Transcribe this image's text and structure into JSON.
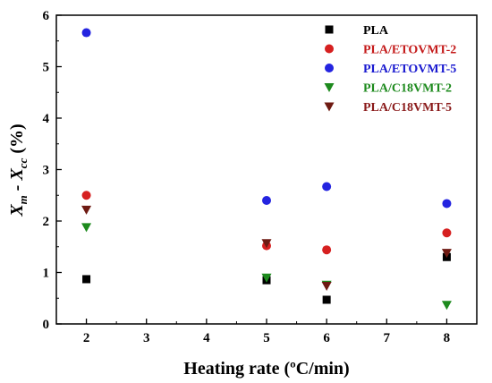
{
  "chart_data": {
    "type": "scatter",
    "xlabel": "Heating rate (ºC/min)",
    "ylabel": {
      "main": "X",
      "sub1": "m",
      "minus": " - X",
      "sub2": "cc",
      "unit": " (%)"
    },
    "xlim": [
      1.5,
      8.5
    ],
    "ylim": [
      0,
      6
    ],
    "xticks": [
      "2",
      "3",
      "4",
      "5",
      "6",
      "7",
      "8"
    ],
    "yticks": [
      "0",
      "1",
      "2",
      "3",
      "4",
      "5",
      "6"
    ],
    "grid": false,
    "legend_position": "top-right",
    "series": [
      {
        "name": "PLA",
        "marker": "square",
        "color": "#000000",
        "text_color": "#000000",
        "x": [
          2,
          5,
          6,
          8
        ],
        "y": [
          0.87,
          0.85,
          0.47,
          1.3
        ]
      },
      {
        "name": "PLA/ETOVMT-2",
        "marker": "circle",
        "color": "#d62020",
        "text_color": "#c41a1a",
        "x": [
          2,
          5,
          6,
          8
        ],
        "y": [
          2.5,
          1.52,
          1.44,
          1.77
        ]
      },
      {
        "name": "PLA/ETOVMT-5",
        "marker": "circle",
        "color": "#2424e0",
        "text_color": "#1a1ad0",
        "x": [
          2,
          5,
          6,
          8
        ],
        "y": [
          5.66,
          2.4,
          2.67,
          2.34
        ]
      },
      {
        "name": "PLA/C18VMT-2",
        "marker": "triangle-down",
        "color": "#1d8a1d",
        "text_color": "#1d8a1d",
        "x": [
          2,
          5,
          6,
          8
        ],
        "y": [
          1.88,
          0.9,
          0.76,
          0.37
        ]
      },
      {
        "name": "PLA/C18VMT-5",
        "marker": "triangle-down",
        "color": "#6e1a12",
        "text_color": "#8a1a1a",
        "x": [
          2,
          5,
          6,
          8
        ],
        "y": [
          2.22,
          1.57,
          0.74,
          1.38
        ]
      }
    ]
  }
}
